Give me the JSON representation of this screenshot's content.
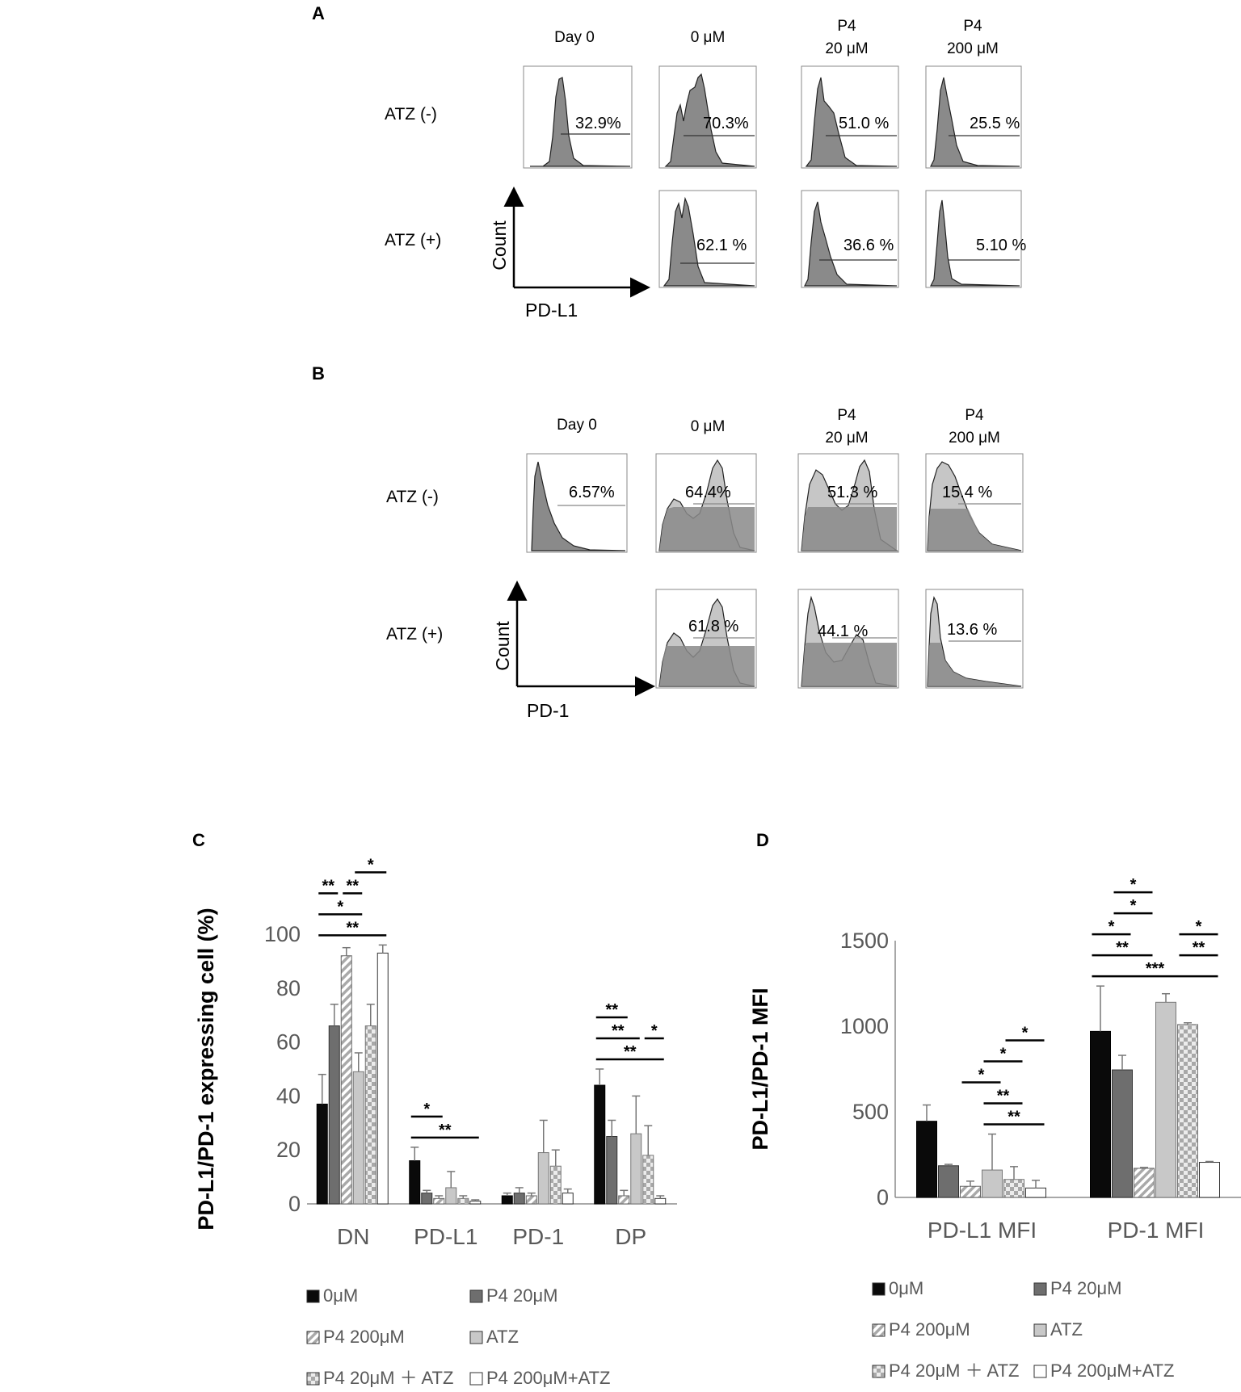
{
  "panels": {
    "A": {
      "letter": "A",
      "columns": [
        {
          "line1": "",
          "line2": "Day 0"
        },
        {
          "line1": "",
          "line2": "0 μM"
        },
        {
          "line1": "P4",
          "line2": "20 μM"
        },
        {
          "line1": "P4",
          "line2": "200 μM"
        }
      ],
      "rows": [
        {
          "label": "ATZ (-)",
          "values": [
            "32.9%",
            "70.3%",
            "51.0 %",
            "25.5 %"
          ]
        },
        {
          "label": "ATZ (+)",
          "values": [
            null,
            "62.1 %",
            "36.6 %",
            "5.10 %"
          ]
        }
      ],
      "y_axis": "Count",
      "x_axis": "PD-L1"
    },
    "B": {
      "letter": "B",
      "columns": [
        {
          "line1": "",
          "line2": "Day 0"
        },
        {
          "line1": "",
          "line2": "0 μM"
        },
        {
          "line1": "P4",
          "line2": "20 μM"
        },
        {
          "line1": "P4",
          "line2": "200 μM"
        }
      ],
      "rows": [
        {
          "label": "ATZ (-)",
          "values": [
            "6.57%",
            "64.4%",
            "51.3 %",
            "15.4 %"
          ]
        },
        {
          "label": "ATZ (+)",
          "values": [
            null,
            "61.8 %",
            "44.1 %",
            "13.6 %"
          ]
        }
      ],
      "y_axis": "Count",
      "x_axis": "PD-1"
    },
    "C": {
      "letter": "C"
    },
    "D": {
      "letter": "D"
    }
  },
  "chart_data": [
    {
      "panel": "C",
      "type": "bar",
      "ylabel": "PD-L1/PD-1 expressing cell (%)",
      "xlabel": "",
      "categories": [
        "DN",
        "PD-L1",
        "PD-1",
        "DP"
      ],
      "ylim": [
        0,
        100
      ],
      "yticks": [
        0,
        20,
        40,
        60,
        80,
        100
      ],
      "series": [
        {
          "name": "0μM",
          "values": [
            37,
            16,
            3,
            44
          ],
          "errors": [
            11,
            5,
            1,
            6
          ]
        },
        {
          "name": "P4 20μM",
          "values": [
            66,
            4,
            4,
            25
          ],
          "errors": [
            8,
            1,
            2,
            6
          ]
        },
        {
          "name": "P4 200μM",
          "values": [
            92,
            2,
            3,
            3
          ],
          "errors": [
            3,
            1,
            1,
            2
          ]
        },
        {
          "name": "ATZ",
          "values": [
            49,
            6,
            19,
            26
          ],
          "errors": [
            7,
            6,
            12,
            14
          ]
        },
        {
          "name": "P4 20μM ＋ ATZ",
          "values": [
            66,
            2,
            14,
            18
          ],
          "errors": [
            8,
            1,
            6,
            11
          ]
        },
        {
          "name": "P4 200μM+ATZ",
          "values": [
            93,
            1,
            4,
            2
          ],
          "errors": [
            3,
            0.5,
            1.5,
            1
          ]
        }
      ],
      "significance": [
        {
          "label": "**",
          "category": "DN",
          "from": 0,
          "to": 5
        },
        {
          "label": "*",
          "category": "DN",
          "from": 0,
          "to": 3
        },
        {
          "label": "**",
          "category": "DN",
          "from": 0,
          "to": 1
        },
        {
          "label": "**",
          "category": "DN",
          "from": 2,
          "to": 3
        },
        {
          "label": "*",
          "category": "DN",
          "from": 3,
          "to": 5
        },
        {
          "label": "**",
          "category": "PD-L1",
          "from": 0,
          "to": 5
        },
        {
          "label": "*",
          "category": "PD-L1",
          "from": 0,
          "to": 2
        },
        {
          "label": "**",
          "category": "DP",
          "from": 0,
          "to": 5
        },
        {
          "label": "**",
          "category": "DP",
          "from": 0,
          "to": 3
        },
        {
          "label": "**",
          "category": "DP",
          "from": 0,
          "to": 2
        },
        {
          "label": "*",
          "category": "DP",
          "from": 4,
          "to": 5
        }
      ]
    },
    {
      "panel": "D",
      "type": "bar",
      "ylabel": "PD-L1/PD-1 MFI",
      "xlabel": "",
      "categories": [
        "PD-L1 MFI",
        "PD-1 MFI"
      ],
      "ylim": [
        0,
        1500
      ],
      "yticks": [
        0,
        500,
        1000,
        1500
      ],
      "series": [
        {
          "name": "0μM",
          "values": [
            445,
            970
          ],
          "errors": [
            95,
            265
          ]
        },
        {
          "name": "P4 20μM",
          "values": [
            185,
            745
          ],
          "errors": [
            8,
            85
          ]
        },
        {
          "name": "P4 200μM",
          "values": [
            65,
            170
          ],
          "errors": [
            30,
            5
          ]
        },
        {
          "name": "ATZ",
          "values": [
            160,
            1140
          ],
          "errors": [
            210,
            50
          ]
        },
        {
          "name": "P4 20μM ＋ ATZ",
          "values": [
            105,
            1010
          ],
          "errors": [
            75,
            10
          ]
        },
        {
          "name": "P4 200μM+ATZ",
          "values": [
            55,
            205
          ],
          "errors": [
            45,
            5
          ]
        }
      ],
      "significance": [
        {
          "label": "**",
          "category": "PD-L1 MFI",
          "from": 3,
          "to": 5
        },
        {
          "label": "**",
          "category": "PD-L1 MFI",
          "from": 3,
          "to": 4
        },
        {
          "label": "*",
          "category": "PD-L1 MFI",
          "from": 2,
          "to": 3
        },
        {
          "label": "*",
          "category": "PD-L1 MFI",
          "from": 3,
          "to": 4
        },
        {
          "label": "*",
          "category": "PD-L1 MFI",
          "from": 4,
          "to": 5
        },
        {
          "label": "***",
          "category": "PD-1 MFI",
          "from": 0,
          "to": 5
        },
        {
          "label": "**",
          "category": "PD-1 MFI",
          "from": 0,
          "to": 2
        },
        {
          "label": "*",
          "category": "PD-1 MFI",
          "from": 0,
          "to": 1
        },
        {
          "label": "*",
          "category": "PD-1 MFI",
          "from": 1,
          "to": 2
        },
        {
          "label": "*",
          "category": "PD-1 MFI",
          "from": 1,
          "to": 2
        },
        {
          "label": "**",
          "category": "PD-1 MFI",
          "from": 4,
          "to": 5
        },
        {
          "label": "*",
          "category": "PD-1 MFI",
          "from": 4,
          "to": 5
        }
      ]
    }
  ],
  "colors": {
    "s0": "#0a0a0a",
    "s1": "#6e6e6e",
    "s2": "#e0e0e0",
    "s3": "#c8c8c8",
    "s4": "#bdbdbd",
    "s5": "#ffffff",
    "hist_dark": "#8a8a8a",
    "hist_light": "#c6c6c6",
    "axis_text": "#595959"
  }
}
